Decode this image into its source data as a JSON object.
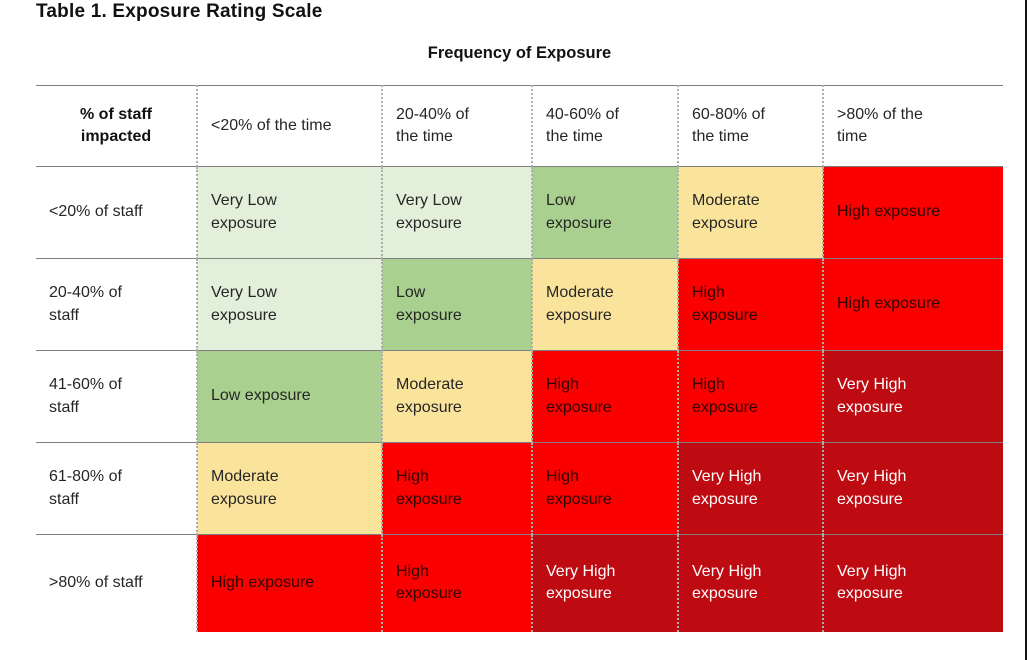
{
  "page": {
    "title": "Table 1. Exposure Rating Scale",
    "table_caption": "Frequency of Exposure"
  },
  "colors": {
    "very_low": {
      "bg": "#E2EFDA",
      "text": "#262626"
    },
    "low": {
      "bg": "#A9D08E",
      "text": "#262626"
    },
    "moderate": {
      "bg": "#FAE49B",
      "text": "#262626"
    },
    "high": {
      "bg": "#FB0000",
      "text": "#2D0400"
    },
    "very_high": {
      "bg": "#BE0A11",
      "text": "#FFFFFF"
    },
    "grid_line": "#7f7f7f",
    "dotted_line": "#adadad",
    "page_edge": "#141414"
  },
  "table": {
    "corner_header": "% of staff impacted",
    "column_headers": [
      "<20% of the time",
      "20-40% of the time",
      "40-60% of the time",
      "60-80% of the time",
      ">80% of the time"
    ],
    "rows": [
      {
        "label": "<20% of staff",
        "cells": [
          {
            "text": "Very Low exposure",
            "level": "very_low"
          },
          {
            "text": "Very Low exposure",
            "level": "very_low"
          },
          {
            "text": "Low exposure",
            "level": "low"
          },
          {
            "text": "Moderate exposure",
            "level": "moderate"
          },
          {
            "text": "High exposure",
            "level": "high"
          }
        ]
      },
      {
        "label": "20-40% of staff",
        "cells": [
          {
            "text": "Very Low exposure",
            "level": "very_low"
          },
          {
            "text": "Low exposure",
            "level": "low"
          },
          {
            "text": "Moderate exposure",
            "level": "moderate"
          },
          {
            "text": "High exposure",
            "level": "high"
          },
          {
            "text": "High exposure",
            "level": "high"
          }
        ]
      },
      {
        "label": "41-60% of staff",
        "cells": [
          {
            "text": "Low exposure",
            "level": "low"
          },
          {
            "text": "Moderate exposure",
            "level": "moderate"
          },
          {
            "text": "High exposure",
            "level": "high"
          },
          {
            "text": "High exposure",
            "level": "high"
          },
          {
            "text": "Very High exposure",
            "level": "very_high"
          }
        ]
      },
      {
        "label": "61-80% of staff",
        "cells": [
          {
            "text": "Moderate exposure",
            "level": "moderate"
          },
          {
            "text": "High exposure",
            "level": "high"
          },
          {
            "text": "High exposure",
            "level": "high"
          },
          {
            "text": "Very High exposure",
            "level": "very_high"
          },
          {
            "text": "Very High exposure",
            "level": "very_high"
          }
        ]
      },
      {
        "label": ">80% of staff",
        "cells": [
          {
            "text": "High exposure",
            "level": "high"
          },
          {
            "text": "High exposure",
            "level": "high"
          },
          {
            "text": "Very High exposure",
            "level": "very_high"
          },
          {
            "text": "Very High exposure",
            "level": "very_high"
          },
          {
            "text": "Very High exposure",
            "level": "very_high"
          }
        ]
      }
    ]
  }
}
